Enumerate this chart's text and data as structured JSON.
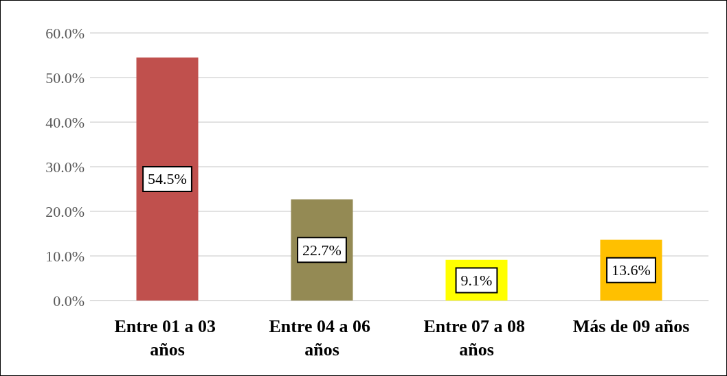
{
  "chart_data": {
    "type": "bar",
    "categories": [
      "Entre 01 a 03 años",
      "Entre 04 a 06 años",
      "Entre 07 a 08 años",
      "Más de 09 años"
    ],
    "values": [
      54.5,
      22.7,
      9.1,
      13.6
    ],
    "colors": [
      "#c0504d",
      "#948a54",
      "#ffff00",
      "#ffc000"
    ],
    "value_labels": [
      "54.5%",
      "22.7%",
      "9.1%",
      "13.6%"
    ],
    "ylim": [
      0,
      60
    ],
    "yticks": [
      {
        "value": 0,
        "label": "0.0%"
      },
      {
        "value": 10,
        "label": "10.0%"
      },
      {
        "value": 20,
        "label": "20.0%"
      },
      {
        "value": 30,
        "label": "30.0%"
      },
      {
        "value": 40,
        "label": "40.0%"
      },
      {
        "value": 50,
        "label": "50.0%"
      },
      {
        "value": 60,
        "label": "60.0%"
      }
    ],
    "grid": "y"
  }
}
